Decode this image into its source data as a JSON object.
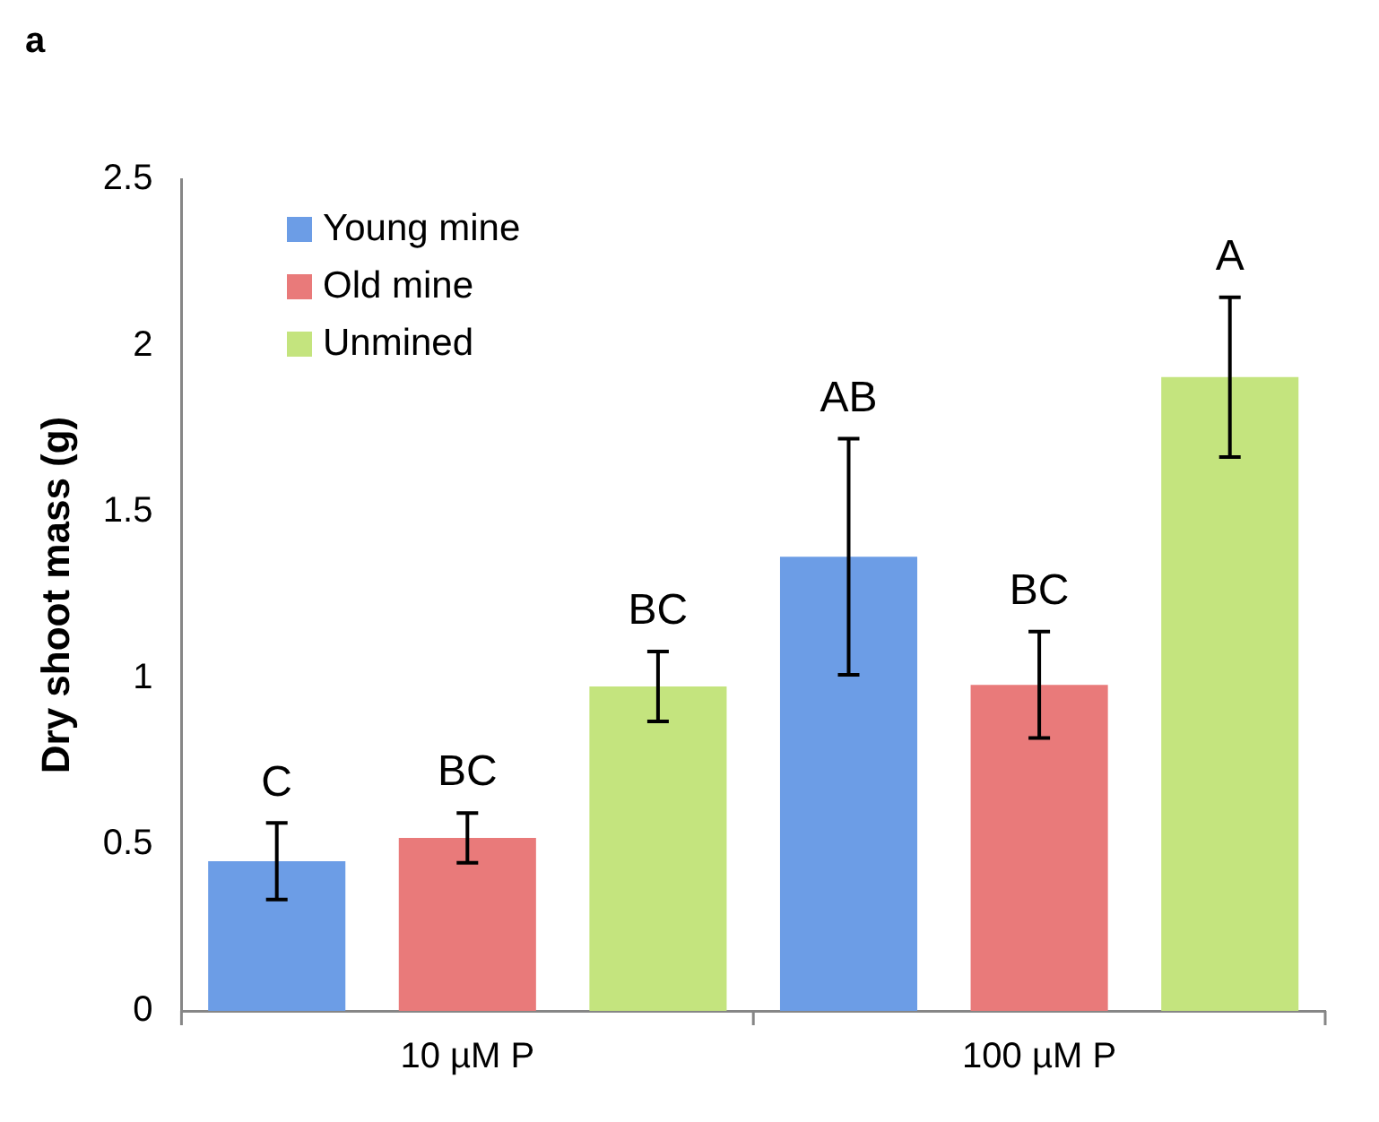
{
  "chart_data": {
    "type": "bar",
    "ylabel": "Dry shoot mass (g)",
    "categories": [
      "10 µM P",
      "100 µM P"
    ],
    "series": [
      {
        "name": "Young mine",
        "color": "#6c9de6",
        "values": [
          0.45,
          1.365
        ],
        "errors": [
          0.115,
          0.355
        ],
        "value_labels": [
          "C",
          "AB"
        ]
      },
      {
        "name": "Old mine",
        "color": "#e97a7a",
        "values": [
          0.52,
          0.98
        ],
        "errors": [
          0.075,
          0.16
        ],
        "value_labels": [
          "BC",
          "BC"
        ]
      },
      {
        "name": "Unmined",
        "color": "#c4e47e",
        "values": [
          0.975,
          1.905
        ],
        "errors": [
          0.105,
          0.24
        ],
        "value_labels": [
          "BC",
          "A"
        ]
      }
    ],
    "ylim": [
      0,
      2.5
    ],
    "yticks": [
      0,
      0.5,
      1,
      1.5,
      2,
      2.5
    ],
    "grid": false,
    "legend": "top left",
    "annotations": [
      "a"
    ]
  }
}
